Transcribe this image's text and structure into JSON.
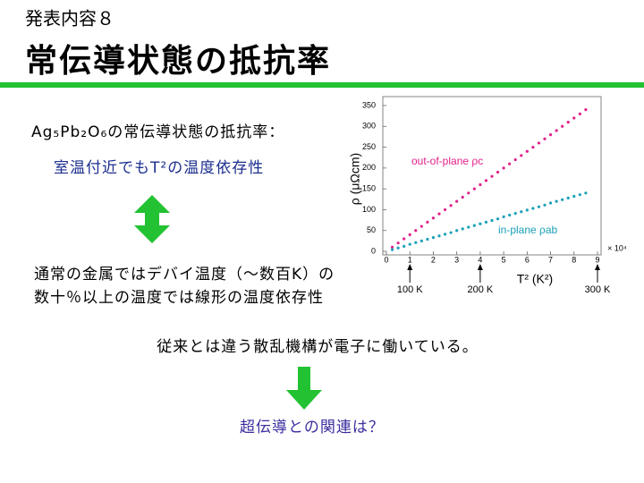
{
  "header": {
    "subtitle": "発表内容８",
    "title": "常伝導状態の抵抗率"
  },
  "body": {
    "intro": "Ag₅Pb₂O₆の常伝導状態の抵抗率：",
    "point": "室温付近でもT²の温度依存性",
    "contrast": [
      "通常の金属ではデバイ温度（～数百K）の",
      "数十％以上の温度では線形の温度依存性"
    ],
    "conclusion": "従来とは違う散乱機構が電子に働いている。",
    "question": "超伝導との関連は？"
  },
  "chart_data": {
    "type": "scatter",
    "x_label": "T² (K²)",
    "y_label": "ρ (μΩcm)",
    "x_multiplier": "× 10⁴",
    "xlim": [
      0,
      9
    ],
    "ylim": [
      0,
      350
    ],
    "xticks": [
      0,
      1,
      2,
      3,
      4,
      5,
      6,
      7,
      8,
      9
    ],
    "yticks": [
      0,
      50,
      100,
      150,
      200,
      250,
      300,
      350
    ],
    "x": [
      0.25,
      0.5,
      0.75,
      1,
      1.25,
      1.5,
      1.75,
      2,
      2.25,
      2.5,
      2.75,
      3,
      3.25,
      3.5,
      3.75,
      4,
      4.25,
      4.5,
      4.75,
      5,
      5.25,
      5.5,
      5.75,
      6,
      6.25,
      6.5,
      6.75,
      7,
      7.25,
      7.5,
      7.75,
      8,
      8.25,
      8.5
    ],
    "series": [
      {
        "name": "out-of-plane ρc",
        "color": "#e0218a",
        "values": [
          10,
          20,
          30,
          40,
          50,
          60,
          70,
          80,
          90,
          100,
          110,
          120,
          130,
          140,
          150,
          160,
          170,
          180,
          190,
          200,
          210,
          220,
          230,
          240,
          250,
          260,
          270,
          280,
          290,
          300,
          310,
          320,
          330,
          340
        ]
      },
      {
        "name": "in-plane ρab",
        "color": "#1aa0b8",
        "values": [
          4,
          8,
          12,
          17,
          21,
          25,
          29,
          33,
          37,
          41,
          45,
          50,
          54,
          58,
          62,
          66,
          70,
          74,
          78,
          83,
          87,
          91,
          95,
          99,
          103,
          107,
          111,
          116,
          120,
          124,
          128,
          132,
          136,
          140
        ]
      }
    ],
    "annotations": [
      {
        "x": 1,
        "label": "100 K"
      },
      {
        "x": 4,
        "label": "200 K"
      },
      {
        "x": 9,
        "label": "300 K"
      }
    ]
  }
}
